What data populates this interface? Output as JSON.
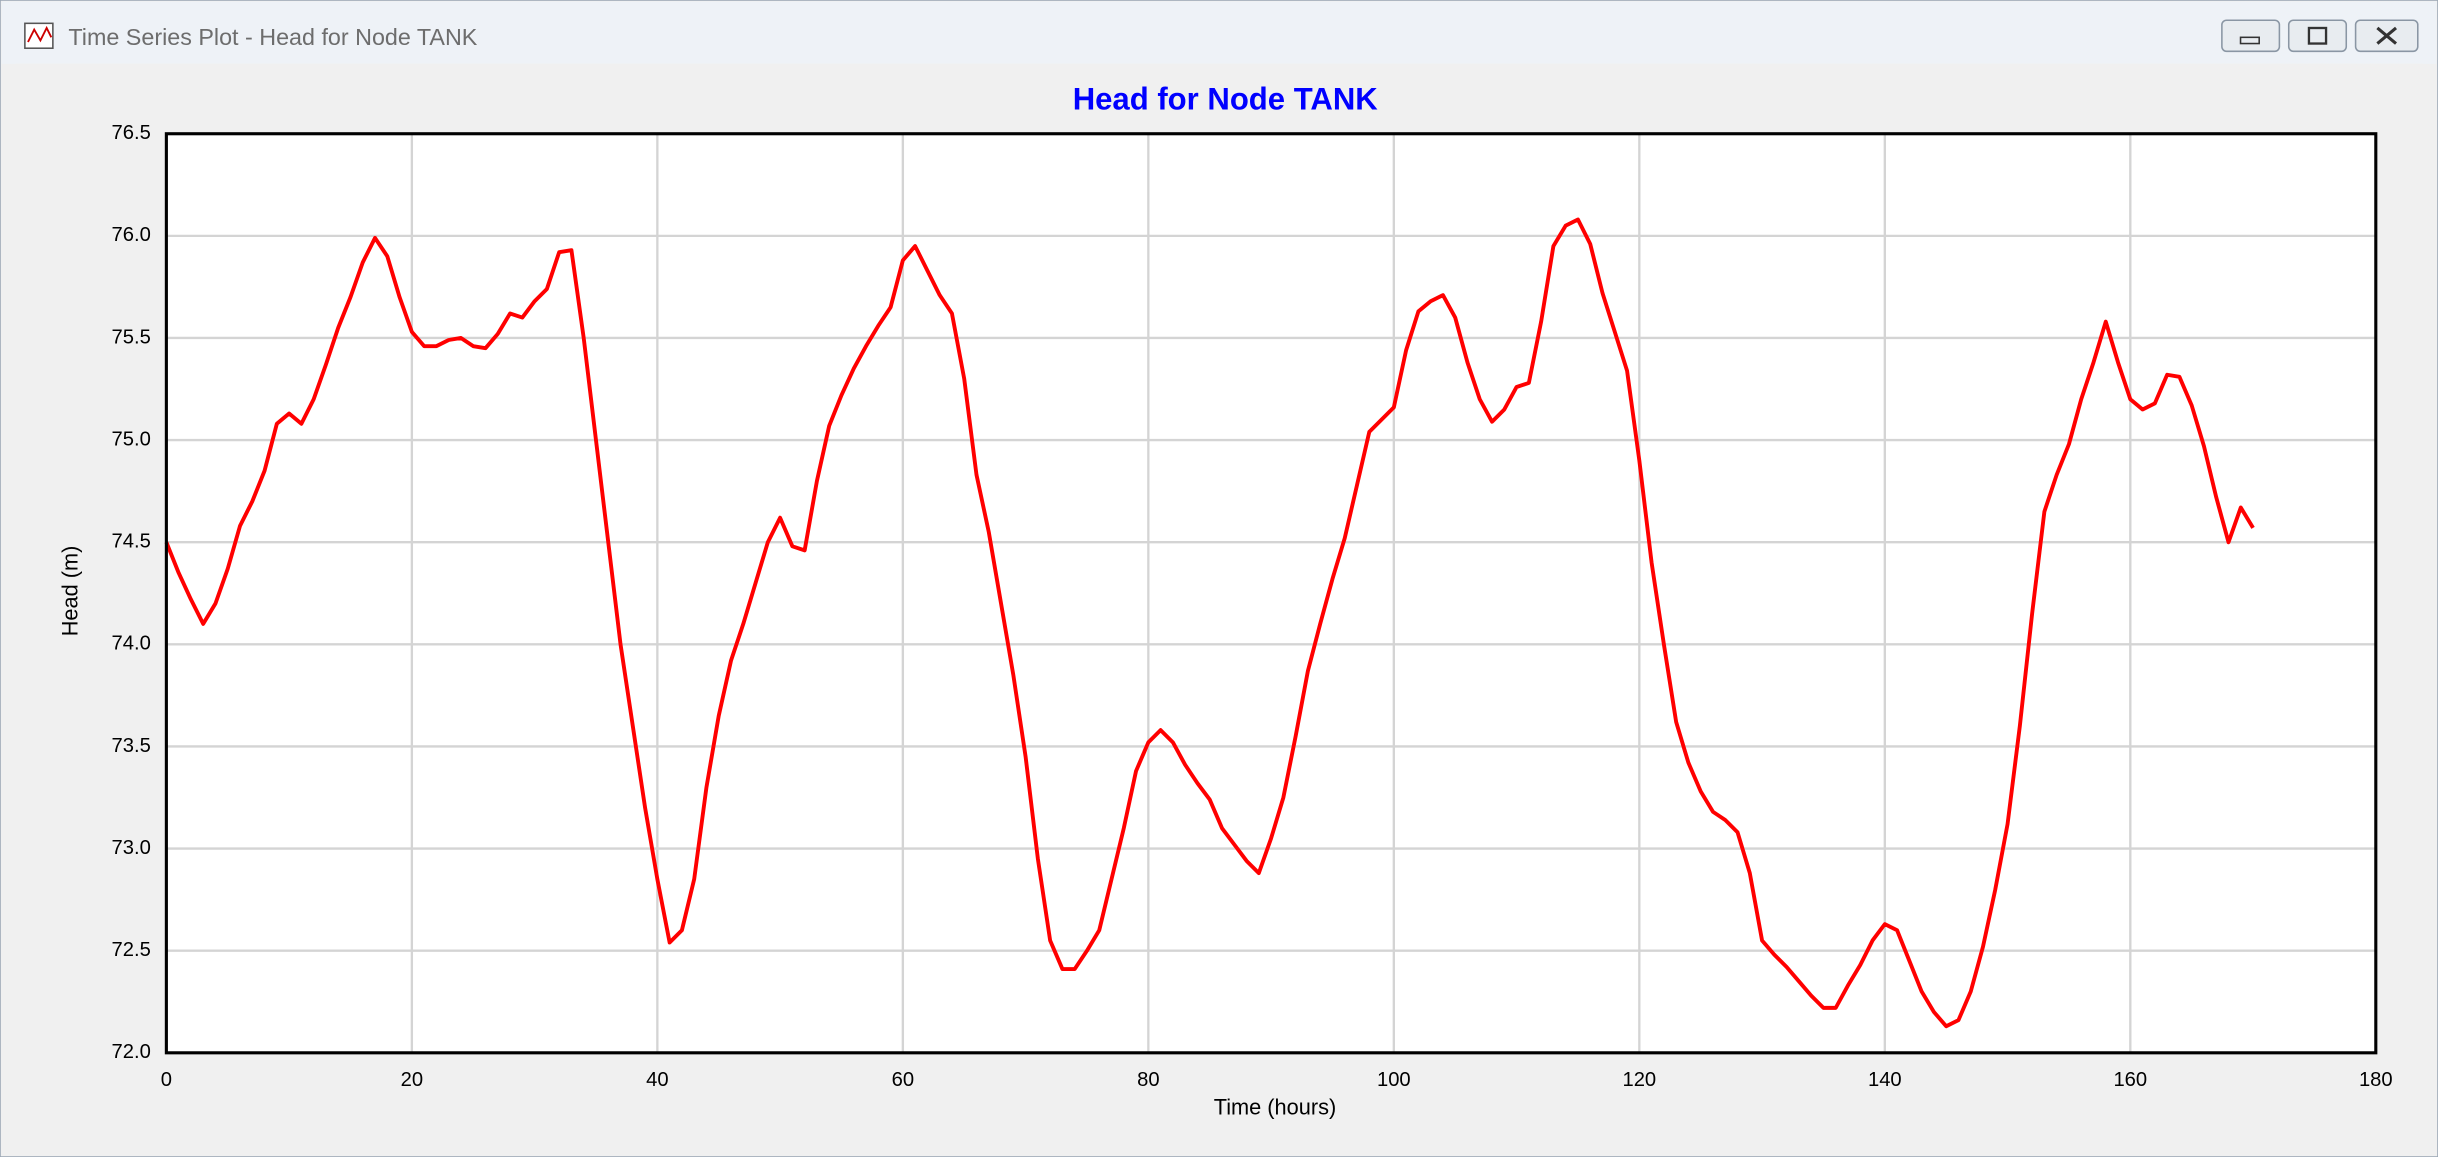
{
  "window": {
    "title": "Time Series Plot - Head for Node TANK"
  },
  "chart_data": {
    "type": "line",
    "title": "Head for Node TANK",
    "x_label": "Time (hours)",
    "y_label": "Head (m)",
    "x": [
      0,
      1,
      2,
      3,
      4,
      5,
      6,
      7,
      8,
      9,
      10,
      11,
      12,
      13,
      14,
      15,
      16,
      17,
      18,
      19,
      20,
      21,
      22,
      23,
      24,
      25,
      26,
      27,
      28,
      29,
      30,
      31,
      32,
      33,
      34,
      35,
      36,
      37,
      38,
      39,
      40,
      41,
      42,
      43,
      44,
      45,
      46,
      47,
      48,
      49,
      50,
      51,
      52,
      53,
      54,
      55,
      56,
      57,
      58,
      59,
      60,
      61,
      62,
      63,
      64,
      65,
      66,
      67,
      68,
      69,
      70,
      71,
      72,
      73,
      74,
      75,
      76,
      77,
      78,
      79,
      80,
      81,
      82,
      83,
      84,
      85,
      86,
      87,
      88,
      89,
      90,
      91,
      92,
      93,
      94,
      95,
      96,
      97,
      98,
      99,
      100,
      101,
      102,
      103,
      104,
      105,
      106,
      107,
      108,
      109,
      110,
      111,
      112,
      113,
      114,
      115,
      116,
      117,
      118,
      119,
      120,
      121,
      122,
      123,
      124,
      125,
      126,
      127,
      128,
      129,
      130,
      131,
      132,
      133,
      134,
      135,
      136,
      137,
      138,
      139,
      140,
      141,
      142,
      143,
      144,
      145,
      146,
      147,
      148,
      149,
      150,
      151,
      152,
      153,
      154,
      155,
      156,
      157,
      158,
      159,
      160,
      161,
      162,
      163,
      164,
      165,
      166,
      167,
      168,
      169,
      170
    ],
    "series": [
      {
        "name": "Head",
        "color": "#ff0000",
        "values": [
          74.5,
          74.35,
          74.22,
          74.1,
          74.2,
          74.37,
          74.58,
          74.7,
          74.85,
          75.08,
          75.13,
          75.08,
          75.2,
          75.37,
          75.55,
          75.7,
          75.87,
          75.99,
          75.9,
          75.7,
          75.53,
          75.46,
          75.46,
          75.49,
          75.5,
          75.46,
          75.45,
          75.52,
          75.62,
          75.6,
          75.68,
          75.74,
          75.92,
          75.93,
          75.5,
          75.0,
          74.5,
          74.0,
          73.6,
          73.2,
          72.85,
          72.54,
          72.6,
          72.85,
          73.3,
          73.65,
          73.92,
          74.1,
          74.3,
          74.5,
          74.62,
          74.48,
          74.46,
          74.8,
          75.07,
          75.22,
          75.35,
          75.46,
          75.56,
          75.65,
          75.88,
          75.95,
          75.83,
          75.71,
          75.62,
          75.3,
          74.83,
          74.55,
          74.2,
          73.85,
          73.45,
          72.95,
          72.55,
          72.41,
          72.41,
          72.5,
          72.6,
          72.85,
          73.1,
          73.38,
          73.52,
          73.58,
          73.52,
          73.41,
          73.32,
          73.24,
          73.1,
          73.02,
          72.94,
          72.88,
          73.05,
          73.25,
          73.55,
          73.87,
          74.1,
          74.32,
          74.52,
          74.78,
          75.04,
          75.1,
          75.16,
          75.44,
          75.63,
          75.68,
          75.71,
          75.6,
          75.38,
          75.2,
          75.09,
          75.15,
          75.26,
          75.28,
          75.58,
          75.95,
          76.05,
          76.08,
          75.96,
          75.72,
          75.53,
          75.34,
          74.9,
          74.4,
          74.0,
          73.62,
          73.42,
          73.28,
          73.18,
          73.14,
          73.08,
          72.88,
          72.55,
          72.48,
          72.42,
          72.35,
          72.28,
          72.22,
          72.22,
          72.33,
          72.43,
          72.55,
          72.63,
          72.6,
          72.45,
          72.3,
          72.2,
          72.13,
          72.16,
          72.3,
          72.52,
          72.8,
          73.12,
          73.6,
          74.15,
          74.65,
          74.83,
          74.98,
          75.2,
          75.38,
          75.58,
          75.38,
          75.2,
          75.15,
          75.18,
          75.32,
          75.31,
          75.17,
          74.97,
          74.72,
          74.5,
          74.67,
          74.57
        ]
      }
    ],
    "xlim": [
      0,
      180
    ],
    "xticks": [
      0,
      20,
      40,
      60,
      80,
      100,
      120,
      140,
      160,
      180
    ],
    "ylim": [
      72,
      76.5
    ],
    "yticks": [
      {
        "value": 72,
        "label": "72.0"
      },
      72.5,
      {
        "value": 73,
        "label": "73.0"
      },
      73.5,
      {
        "value": 74,
        "label": "74.0"
      },
      74.5,
      {
        "value": 75,
        "label": "75.0"
      },
      75.5,
      {
        "value": 76,
        "label": "76.0"
      },
      76.5
    ],
    "grid": true
  }
}
